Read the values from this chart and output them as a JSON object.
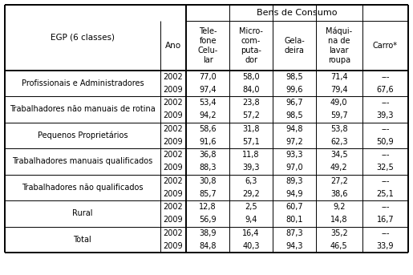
{
  "title_header": "Bens de Consumo",
  "rows": [
    {
      "label": "Profissionais e Administradores",
      "years": [
        "2002",
        "2009"
      ],
      "values": [
        [
          "77,0",
          "58,0",
          "98,5",
          "71,4",
          "---"
        ],
        [
          "97,4",
          "84,0",
          "99,6",
          "79,4",
          "67,6"
        ]
      ]
    },
    {
      "label": "Trabalhadores não manuais de rotina",
      "years": [
        "2002",
        "2009"
      ],
      "values": [
        [
          "53,4",
          "23,8",
          "96,7",
          "49,0",
          "---"
        ],
        [
          "94,2",
          "57,2",
          "98,5",
          "59,7",
          "39,3"
        ]
      ]
    },
    {
      "label": "Pequenos Proprietários",
      "years": [
        "2002",
        "2009"
      ],
      "values": [
        [
          "58,6",
          "31,8",
          "94,8",
          "53,8",
          "---"
        ],
        [
          "91,6",
          "57,1",
          "97,2",
          "62,3",
          "50,9"
        ]
      ]
    },
    {
      "label": "Trabalhadores manuais qualificados",
      "years": [
        "2002",
        "2009"
      ],
      "values": [
        [
          "36,8",
          "11,8",
          "93,3",
          "34,5",
          "---"
        ],
        [
          "88,3",
          "39,3",
          "97,0",
          "49,2",
          "32,5"
        ]
      ]
    },
    {
      "label": "Trabalhadores não qualificados",
      "years": [
        "2002",
        "2009"
      ],
      "values": [
        [
          "30,8",
          "6,3",
          "89,3",
          "27,2",
          "---"
        ],
        [
          "85,7",
          "29,2",
          "94,9",
          "38,6",
          "25,1"
        ]
      ]
    },
    {
      "label": "Rural",
      "years": [
        "2002",
        "2009"
      ],
      "values": [
        [
          "12,8",
          "2,5",
          "60,7",
          "9,2",
          "---"
        ],
        [
          "56,9",
          "9,4",
          "80,1",
          "14,8",
          "16,7"
        ]
      ]
    },
    {
      "label": "Total",
      "years": [
        "2002",
        "2009"
      ],
      "values": [
        [
          "38,9",
          "16,4",
          "87,3",
          "35,2",
          "---"
        ],
        [
          "84,8",
          "40,3",
          "94,3",
          "46,5",
          "33,9"
        ]
      ]
    }
  ],
  "col_header_texts": [
    "Tele-\nfone\nCelu-\nlar",
    "Micro-\ncom-\nputa-\ndor",
    "Gela-\ndeira",
    "Máqui-\nna de\nlavar\nroupa",
    "Carro*"
  ],
  "bg_color": "#ffffff",
  "text_color": "#000000",
  "fontsize": 7.0,
  "header_fontsize": 7.5
}
